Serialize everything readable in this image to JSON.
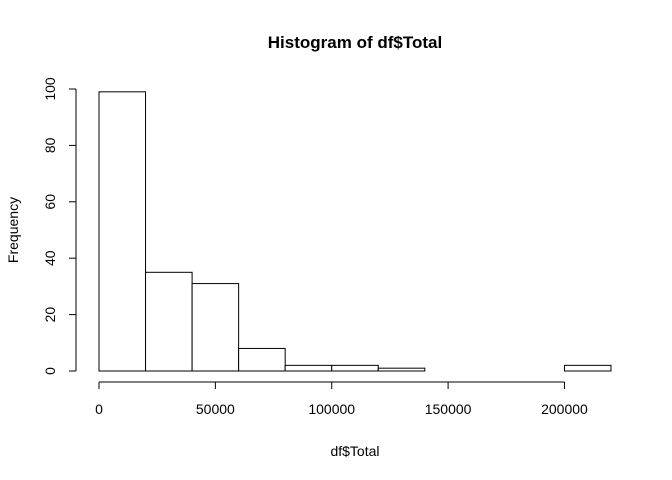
{
  "chart_data": {
    "type": "bar",
    "title": "Histogram of df$Total",
    "xlabel": "df$Total",
    "ylabel": "Frequency",
    "bins": [
      {
        "from": 0,
        "to": 20000,
        "count": 99
      },
      {
        "from": 20000,
        "to": 40000,
        "count": 35
      },
      {
        "from": 40000,
        "to": 60000,
        "count": 31
      },
      {
        "from": 60000,
        "to": 80000,
        "count": 8
      },
      {
        "from": 80000,
        "to": 100000,
        "count": 2
      },
      {
        "from": 100000,
        "to": 120000,
        "count": 2
      },
      {
        "from": 120000,
        "to": 140000,
        "count": 1
      },
      {
        "from": 140000,
        "to": 160000,
        "count": 0
      },
      {
        "from": 160000,
        "to": 180000,
        "count": 0
      },
      {
        "from": 180000,
        "to": 200000,
        "count": 0
      },
      {
        "from": 200000,
        "to": 220000,
        "count": 2
      }
    ],
    "xlim": [
      0,
      220000
    ],
    "ylim": [
      0,
      100
    ],
    "x_ticks": [
      0,
      50000,
      100000,
      150000,
      200000
    ],
    "y_ticks": [
      0,
      20,
      40,
      60,
      80,
      100
    ],
    "grid": false,
    "bar_fill": "#ffffff",
    "bar_stroke": "#000000"
  }
}
